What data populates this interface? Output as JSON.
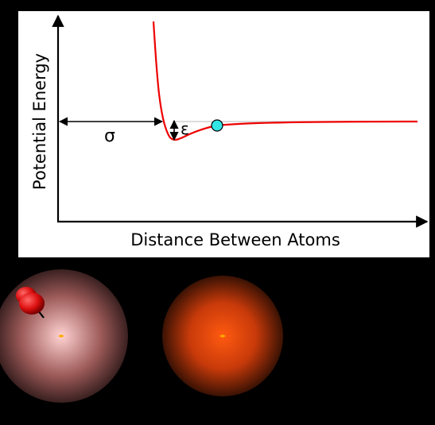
{
  "diagram": {
    "y_axis_label": "Potential Energy",
    "x_axis_label": "Distance Between Atoms",
    "sigma_label": "σ",
    "epsilon_label": "ε",
    "curve_color": "#ee0000",
    "marker_color": "#33e6e6",
    "panel_background": "#ffffff",
    "page_background": "#000000"
  },
  "atoms": [
    {
      "name": "atom-left",
      "colors": [
        "#ffd2d2",
        "#9c5a58",
        "#3a2020"
      ],
      "has_pushpin": true
    },
    {
      "name": "atom-right",
      "colors": [
        "#ff5a10",
        "#c83a0a",
        "#3a1204"
      ],
      "has_pushpin": false
    }
  ],
  "pushpin": {
    "color": "#dd1010"
  }
}
